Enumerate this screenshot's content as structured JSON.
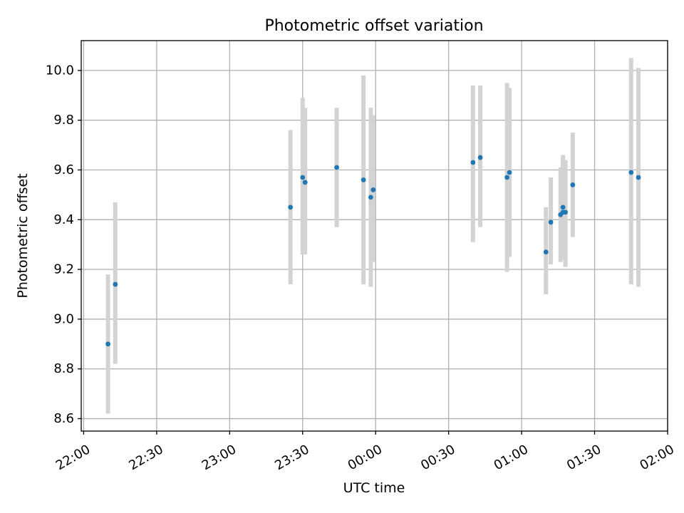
{
  "chart_data": {
    "type": "scatter",
    "title": "Photometric offset variation",
    "xlabel": "UTC time",
    "ylabel": "Photometric offset",
    "x_tick_labels": [
      "22:00",
      "22:30",
      "23:00",
      "23:30",
      "00:00",
      "00:30",
      "01:00",
      "01:30",
      "02:00"
    ],
    "y_tick_labels": [
      "8.6",
      "8.8",
      "9.0",
      "9.2",
      "9.4",
      "9.6",
      "9.8",
      "10.0"
    ],
    "x_ticks_minutes": [
      0,
      30,
      60,
      90,
      120,
      150,
      180,
      210,
      240
    ],
    "y_ticks": [
      8.6,
      8.8,
      9.0,
      9.2,
      9.4,
      9.6,
      9.8,
      10.0
    ],
    "xlim_minutes": [
      -1,
      240
    ],
    "ylim": [
      8.55,
      10.12
    ],
    "grid": true,
    "colors": {
      "point": "#1f77b4",
      "errorbar": "#d3d3d3",
      "grid": "#b0b0b0"
    },
    "points": [
      {
        "time": "22:10",
        "y": 8.9,
        "yerr_low": 8.62,
        "yerr_high": 9.18
      },
      {
        "time": "22:13",
        "y": 9.14,
        "yerr_low": 8.82,
        "yerr_high": 9.47
      },
      {
        "time": "23:25",
        "y": 9.45,
        "yerr_low": 9.14,
        "yerr_high": 9.76
      },
      {
        "time": "23:30",
        "y": 9.57,
        "yerr_low": 9.26,
        "yerr_high": 9.89
      },
      {
        "time": "23:31",
        "y": 9.55,
        "yerr_low": 9.26,
        "yerr_high": 9.85
      },
      {
        "time": "23:44",
        "y": 9.61,
        "yerr_low": 9.37,
        "yerr_high": 9.85
      },
      {
        "time": "23:55",
        "y": 9.56,
        "yerr_low": 9.14,
        "yerr_high": 9.98
      },
      {
        "time": "23:58",
        "y": 9.49,
        "yerr_low": 9.13,
        "yerr_high": 9.85
      },
      {
        "time": "23:59",
        "y": 9.52,
        "yerr_low": 9.23,
        "yerr_high": 9.82
      },
      {
        "time": "00:40",
        "y": 9.63,
        "yerr_low": 9.31,
        "yerr_high": 9.94
      },
      {
        "time": "00:43",
        "y": 9.65,
        "yerr_low": 9.37,
        "yerr_high": 9.94
      },
      {
        "time": "00:54",
        "y": 9.57,
        "yerr_low": 9.19,
        "yerr_high": 9.95
      },
      {
        "time": "00:55",
        "y": 9.59,
        "yerr_low": 9.25,
        "yerr_high": 9.93
      },
      {
        "time": "01:10",
        "y": 9.27,
        "yerr_low": 9.1,
        "yerr_high": 9.45
      },
      {
        "time": "01:12",
        "y": 9.39,
        "yerr_low": 9.22,
        "yerr_high": 9.57
      },
      {
        "time": "01:16",
        "y": 9.42,
        "yerr_low": 9.23,
        "yerr_high": 9.61
      },
      {
        "time": "01:17",
        "y": 9.43,
        "yerr_low": 9.25,
        "yerr_high": 9.66
      },
      {
        "time": "01:17",
        "y": 9.45,
        "yerr_low": 9.24,
        "yerr_high": 9.64
      },
      {
        "time": "01:18",
        "y": 9.43,
        "yerr_low": 9.21,
        "yerr_high": 9.64
      },
      {
        "time": "01:21",
        "y": 9.54,
        "yerr_low": 9.33,
        "yerr_high": 9.75
      },
      {
        "time": "01:45",
        "y": 9.59,
        "yerr_low": 9.14,
        "yerr_high": 10.05
      },
      {
        "time": "01:48",
        "y": 9.57,
        "yerr_low": 9.13,
        "yerr_high": 10.01
      }
    ]
  }
}
